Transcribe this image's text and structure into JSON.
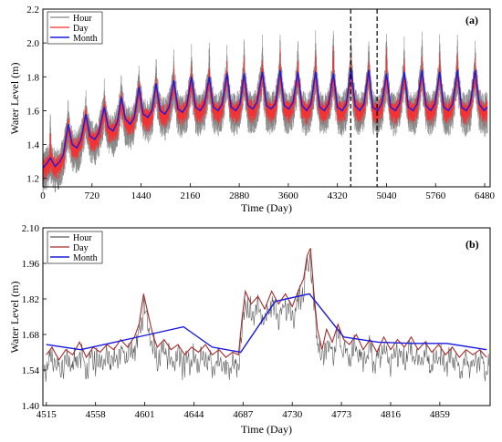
{
  "chart_data": [
    {
      "type": "line",
      "panel_label": "(a)",
      "xlabel": "Time (Day)",
      "ylabel": "Water Level (m)",
      "xlim": [
        0,
        6560
      ],
      "ylim": [
        1.15,
        2.2
      ],
      "x_ticks": [
        0,
        720,
        1440,
        2160,
        2880,
        3600,
        4320,
        5040,
        5760,
        6480
      ],
      "y_ticks": [
        1.2,
        1.4,
        1.6,
        1.8,
        2.0,
        2.2
      ],
      "y_tick_labels": [
        "1.2",
        "1.4",
        "1.6",
        "1.8",
        "2.0",
        "2.2"
      ],
      "legend_position": "top-left",
      "grid": false,
      "dashed_vlines_x": [
        4515,
        4902
      ],
      "series": [
        {
          "name": "Hour",
          "color": "#888888",
          "description": "noisy hourly signal; band roughly 1.25-1.35 at start rising to about 1.50-1.70 after day 2500, with annual peaks up to ~2.0 (some to ~2.1)",
          "annual_peak_days": [
            110,
            370,
            630,
            900,
            1150,
            1410,
            1660,
            1920,
            2180,
            2440,
            2700,
            2950,
            3220,
            3480,
            3740,
            4000,
            4260,
            4520,
            4780,
            5040,
            5300,
            5560,
            5820,
            6080,
            6340
          ],
          "annual_peak_values": [
            1.62,
            1.7,
            1.75,
            1.8,
            1.85,
            1.9,
            1.95,
            1.98,
            2.0,
            2.02,
            2.0,
            2.05,
            2.05,
            2.07,
            2.05,
            2.08,
            2.1,
            2.07,
            2.05,
            2.1,
            2.05,
            2.08,
            2.05,
            2.08,
            2.04
          ]
        },
        {
          "name": "Day",
          "color": "#ff2a2a",
          "description": "daily mean; band roughly 1.28-1.40 at start rising to about 1.55-1.68, annual peaks ~1.85-1.95"
        },
        {
          "name": "Month",
          "color": "#1a1adf",
          "x": [
            0,
            60,
            110,
            180,
            250,
            300,
            370,
            430,
            500,
            560,
            630,
            690,
            760,
            820,
            900,
            960,
            1030,
            1090,
            1150,
            1210,
            1280,
            1340,
            1410,
            1470,
            1540,
            1600,
            1660,
            1720,
            1790,
            1850,
            1920,
            1980,
            2050,
            2110,
            2180,
            2240,
            2310,
            2370,
            2440,
            2500,
            2570,
            2630,
            2700,
            2760,
            2830,
            2890,
            2950,
            3010,
            3080,
            3140,
            3220,
            3280,
            3350,
            3410,
            3480,
            3540,
            3610,
            3670,
            3740,
            3800,
            3870,
            3930,
            4000,
            4060,
            4130,
            4190,
            4260,
            4320,
            4390,
            4450,
            4520,
            4580,
            4650,
            4710,
            4780,
            4840,
            4910,
            4970,
            5040,
            5100,
            5170,
            5230,
            5300,
            5360,
            5430,
            5490,
            5560,
            5620,
            5690,
            5750,
            5820,
            5880,
            5950,
            6010,
            6080,
            6140,
            6210,
            6270,
            6340,
            6400,
            6470,
            6520
          ],
          "y": [
            1.26,
            1.29,
            1.32,
            1.27,
            1.3,
            1.34,
            1.52,
            1.4,
            1.38,
            1.43,
            1.58,
            1.45,
            1.43,
            1.47,
            1.62,
            1.5,
            1.48,
            1.53,
            1.68,
            1.55,
            1.52,
            1.56,
            1.74,
            1.58,
            1.56,
            1.6,
            1.76,
            1.6,
            1.58,
            1.62,
            1.78,
            1.61,
            1.59,
            1.63,
            1.8,
            1.62,
            1.6,
            1.64,
            1.8,
            1.62,
            1.6,
            1.64,
            1.82,
            1.62,
            1.6,
            1.64,
            1.82,
            1.63,
            1.61,
            1.65,
            1.83,
            1.63,
            1.61,
            1.64,
            1.84,
            1.63,
            1.61,
            1.65,
            1.83,
            1.63,
            1.6,
            1.64,
            1.83,
            1.62,
            1.6,
            1.64,
            1.82,
            1.62,
            1.6,
            1.64,
            1.85,
            1.63,
            1.6,
            1.64,
            1.84,
            1.62,
            1.6,
            1.64,
            1.82,
            1.62,
            1.6,
            1.64,
            1.83,
            1.62,
            1.6,
            1.64,
            1.84,
            1.63,
            1.6,
            1.64,
            1.83,
            1.62,
            1.6,
            1.64,
            1.84,
            1.62,
            1.6,
            1.64,
            1.84,
            1.64,
            1.6,
            1.62
          ]
        }
      ]
    },
    {
      "type": "line",
      "panel_label": "(b)",
      "xlabel": "Time (Day)",
      "ylabel": "Water Level (m)",
      "xlim": [
        4512,
        4903
      ],
      "ylim": [
        1.4,
        2.1
      ],
      "x_ticks": [
        4515,
        4558,
        4601,
        4644,
        4687,
        4730,
        4773,
        4816,
        4859
      ],
      "y_ticks": [
        1.4,
        1.54,
        1.68,
        1.82,
        1.96,
        2.1
      ],
      "y_tick_labels": [
        "1.40",
        "1.54",
        "1.68",
        "1.82",
        "1.96",
        "2.10"
      ],
      "legend_position": "top-left",
      "grid": false,
      "series": [
        {
          "name": "Hour",
          "color": "#5a5a5a",
          "description": "hourly signal oscillating 1.50-1.68 most of the period, spike to ~1.90 near day 4601, high plateau 1.70-1.90 between days 4687-4752 with peak ~2.04 near day 4745"
        },
        {
          "name": "Day",
          "color": "#a52a2a",
          "x": [
            4515,
            4520,
            4526,
            4532,
            4538,
            4544,
            4550,
            4556,
            4562,
            4568,
            4574,
            4580,
            4586,
            4592,
            4596,
            4600,
            4604,
            4608,
            4612,
            4618,
            4624,
            4630,
            4636,
            4642,
            4648,
            4654,
            4660,
            4666,
            4672,
            4678,
            4683,
            4686,
            4689,
            4694,
            4700,
            4706,
            4712,
            4718,
            4724,
            4730,
            4736,
            4740,
            4743,
            4746,
            4749,
            4752,
            4756,
            4760,
            4765,
            4770,
            4775,
            4780,
            4786,
            4792,
            4798,
            4804,
            4810,
            4816,
            4822,
            4828,
            4834,
            4840,
            4846,
            4852,
            4858,
            4864,
            4870,
            4876,
            4882,
            4888,
            4894,
            4900
          ],
          "y": [
            1.6,
            1.63,
            1.58,
            1.62,
            1.6,
            1.65,
            1.59,
            1.63,
            1.61,
            1.64,
            1.62,
            1.66,
            1.63,
            1.67,
            1.72,
            1.84,
            1.76,
            1.68,
            1.63,
            1.66,
            1.62,
            1.64,
            1.6,
            1.63,
            1.61,
            1.64,
            1.6,
            1.62,
            1.59,
            1.61,
            1.6,
            1.74,
            1.85,
            1.8,
            1.83,
            1.78,
            1.85,
            1.8,
            1.84,
            1.79,
            1.86,
            1.9,
            1.99,
            2.02,
            1.84,
            1.7,
            1.62,
            1.7,
            1.65,
            1.72,
            1.66,
            1.64,
            1.68,
            1.62,
            1.66,
            1.61,
            1.67,
            1.62,
            1.66,
            1.63,
            1.67,
            1.62,
            1.65,
            1.61,
            1.64,
            1.6,
            1.63,
            1.59,
            1.62,
            1.6,
            1.62,
            1.59
          ]
        },
        {
          "name": "Month",
          "color": "#1a1adf",
          "x": [
            4515,
            4545,
            4575,
            4605,
            4635,
            4660,
            4685,
            4715,
            4745,
            4775,
            4805,
            4835,
            4865,
            4900
          ],
          "y": [
            1.64,
            1.62,
            1.65,
            1.68,
            1.71,
            1.63,
            1.61,
            1.81,
            1.84,
            1.67,
            1.65,
            1.645,
            1.645,
            1.62
          ]
        }
      ]
    }
  ]
}
